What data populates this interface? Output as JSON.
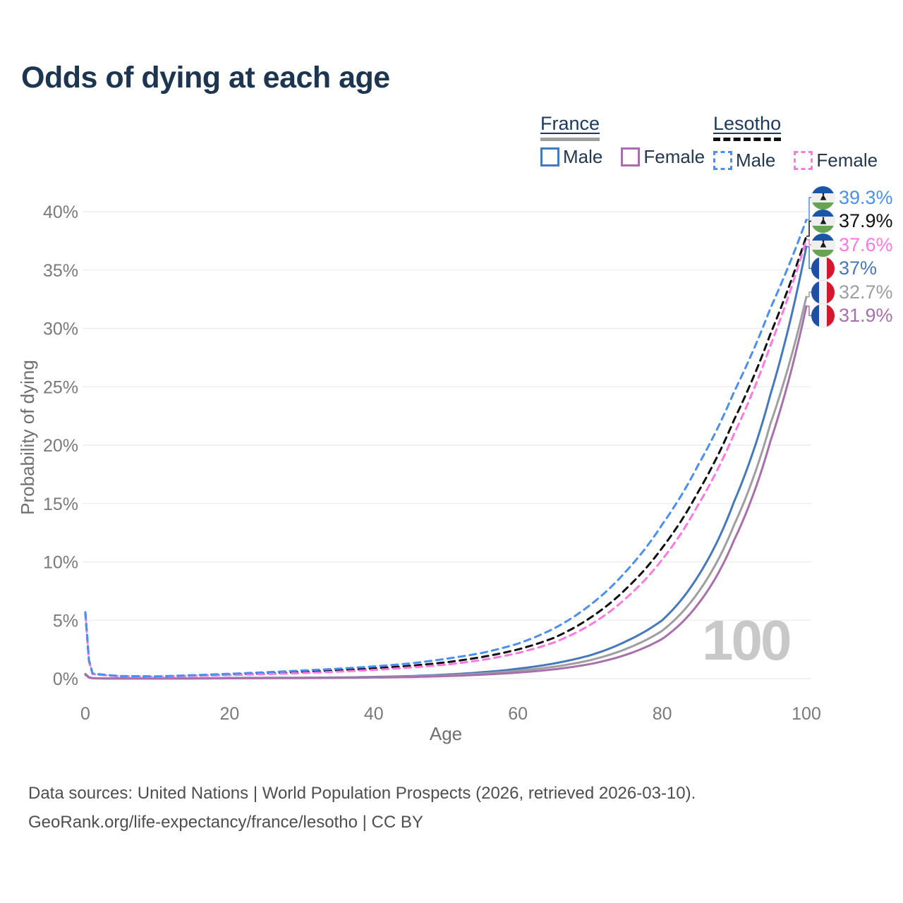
{
  "title": "Odds of dying at each age",
  "legend": {
    "groups": [
      {
        "name": "France",
        "line_style": "solid",
        "line_color": "#9e9e9e",
        "items": [
          {
            "label": "Male",
            "color": "#4678bd",
            "dash": false
          },
          {
            "label": "Female",
            "color": "#a96fad",
            "dash": false
          }
        ]
      },
      {
        "name": "Lesotho",
        "line_style": "dashed",
        "line_color": "#111111",
        "items": [
          {
            "label": "Male",
            "color": "#4a8ff2",
            "dash": true
          },
          {
            "label": "Female",
            "color": "#ff77e0",
            "dash": true
          }
        ]
      }
    ]
  },
  "chart_data": {
    "type": "line",
    "title": "Odds of dying at each age",
    "xlabel": "Age",
    "ylabel": "Probability of dying",
    "xlim": [
      0,
      100
    ],
    "ylim": [
      0,
      41
    ],
    "grid": "horizontal",
    "x_ticks": [
      {
        "value": 0,
        "label": "0"
      },
      {
        "value": 20,
        "label": "20"
      },
      {
        "value": 40,
        "label": "40"
      },
      {
        "value": 60,
        "label": "60"
      },
      {
        "value": 80,
        "label": "80"
      },
      {
        "value": 100,
        "label": "100"
      }
    ],
    "y_ticks": [
      {
        "value": 0,
        "label": "0%"
      },
      {
        "value": 5,
        "label": "5%"
      },
      {
        "value": 10,
        "label": "10%"
      },
      {
        "value": 15,
        "label": "15%"
      },
      {
        "value": 20,
        "label": "20%"
      },
      {
        "value": 25,
        "label": "25%"
      },
      {
        "value": 30,
        "label": "30%"
      },
      {
        "value": 35,
        "label": "35%"
      },
      {
        "value": 40,
        "label": "40%"
      }
    ],
    "ages": [
      0,
      1,
      5,
      10,
      15,
      20,
      25,
      30,
      35,
      40,
      45,
      50,
      55,
      60,
      65,
      70,
      75,
      80,
      85,
      90,
      95,
      100
    ],
    "series": [
      {
        "name": "France Male",
        "country": "France",
        "sex": "male",
        "color": "#4678bd",
        "dash": false,
        "end_label": "37%",
        "values": [
          0.4,
          0.04,
          0.01,
          0.01,
          0.03,
          0.06,
          0.07,
          0.08,
          0.1,
          0.15,
          0.22,
          0.35,
          0.55,
          0.85,
          1.3,
          2.0,
          3.2,
          5.0,
          8.8,
          15.2,
          24.3,
          37.0
        ]
      },
      {
        "name": "France",
        "country": "France",
        "sex": "both",
        "color": "#9e9e9e",
        "dash": false,
        "end_label": "32.7%",
        "values": [
          0.36,
          0.035,
          0.01,
          0.01,
          0.02,
          0.045,
          0.055,
          0.065,
          0.085,
          0.125,
          0.18,
          0.28,
          0.44,
          0.68,
          1.02,
          1.58,
          2.55,
          4.1,
          7.4,
          13.2,
          21.8,
          32.7
        ]
      },
      {
        "name": "France Female",
        "country": "France",
        "sex": "female",
        "color": "#a96fad",
        "dash": false,
        "end_label": "31.9%",
        "values": [
          0.33,
          0.03,
          0.008,
          0.008,
          0.015,
          0.03,
          0.04,
          0.05,
          0.065,
          0.1,
          0.14,
          0.22,
          0.34,
          0.52,
          0.8,
          1.25,
          2.05,
          3.4,
          6.4,
          11.9,
          20.3,
          31.9
        ]
      },
      {
        "name": "Lesotho",
        "country": "Lesotho",
        "sex": "both",
        "color": "#111111",
        "dash": true,
        "end_label": "37.9%",
        "values": [
          5.6,
          0.42,
          0.2,
          0.18,
          0.26,
          0.36,
          0.46,
          0.58,
          0.72,
          0.88,
          1.1,
          1.4,
          1.85,
          2.5,
          3.5,
          5.2,
          7.7,
          11.2,
          16.0,
          22.2,
          29.5,
          37.9
        ]
      },
      {
        "name": "Lesotho Female",
        "country": "Lesotho",
        "sex": "female",
        "color": "#ff77e0",
        "dash": true,
        "end_label": "37.6%",
        "values": [
          5.5,
          0.4,
          0.19,
          0.17,
          0.23,
          0.31,
          0.39,
          0.48,
          0.6,
          0.75,
          0.95,
          1.2,
          1.6,
          2.2,
          3.1,
          4.6,
          6.9,
          10.2,
          14.9,
          21.0,
          28.5,
          37.6
        ]
      },
      {
        "name": "Lesotho Male",
        "country": "Lesotho",
        "sex": "male",
        "color": "#4a8ff2",
        "dash": true,
        "end_label": "39.3%",
        "values": [
          5.7,
          0.45,
          0.22,
          0.2,
          0.3,
          0.42,
          0.55,
          0.7,
          0.85,
          1.05,
          1.3,
          1.7,
          2.2,
          3.0,
          4.3,
          6.3,
          9.2,
          13.2,
          18.3,
          24.6,
          31.7,
          39.3
        ]
      }
    ]
  },
  "end_labels": [
    {
      "value": "39.3%",
      "series": "Lesotho Male",
      "flag": "lesotho",
      "color": "#4a8ff2"
    },
    {
      "value": "37.9%",
      "series": "Lesotho",
      "flag": "lesotho",
      "color": "#111111"
    },
    {
      "value": "37.6%",
      "series": "Lesotho Female",
      "flag": "lesotho",
      "color": "#ff77e0"
    },
    {
      "value": "37%",
      "series": "France Male",
      "flag": "france",
      "color": "#4678bd"
    },
    {
      "value": "32.7%",
      "series": "France",
      "flag": "france",
      "color": "#9e9e9e"
    },
    {
      "value": "31.9%",
      "series": "France Female",
      "flag": "france",
      "color": "#a96fad"
    }
  ],
  "watermark": {
    "text": "100"
  },
  "footer": {
    "line1": "Data sources: United Nations | World Population Prospects (2026, retrieved 2026-03-10).",
    "line2": "GeoRank.org/life-expectancy/france/lesotho | CC BY"
  }
}
